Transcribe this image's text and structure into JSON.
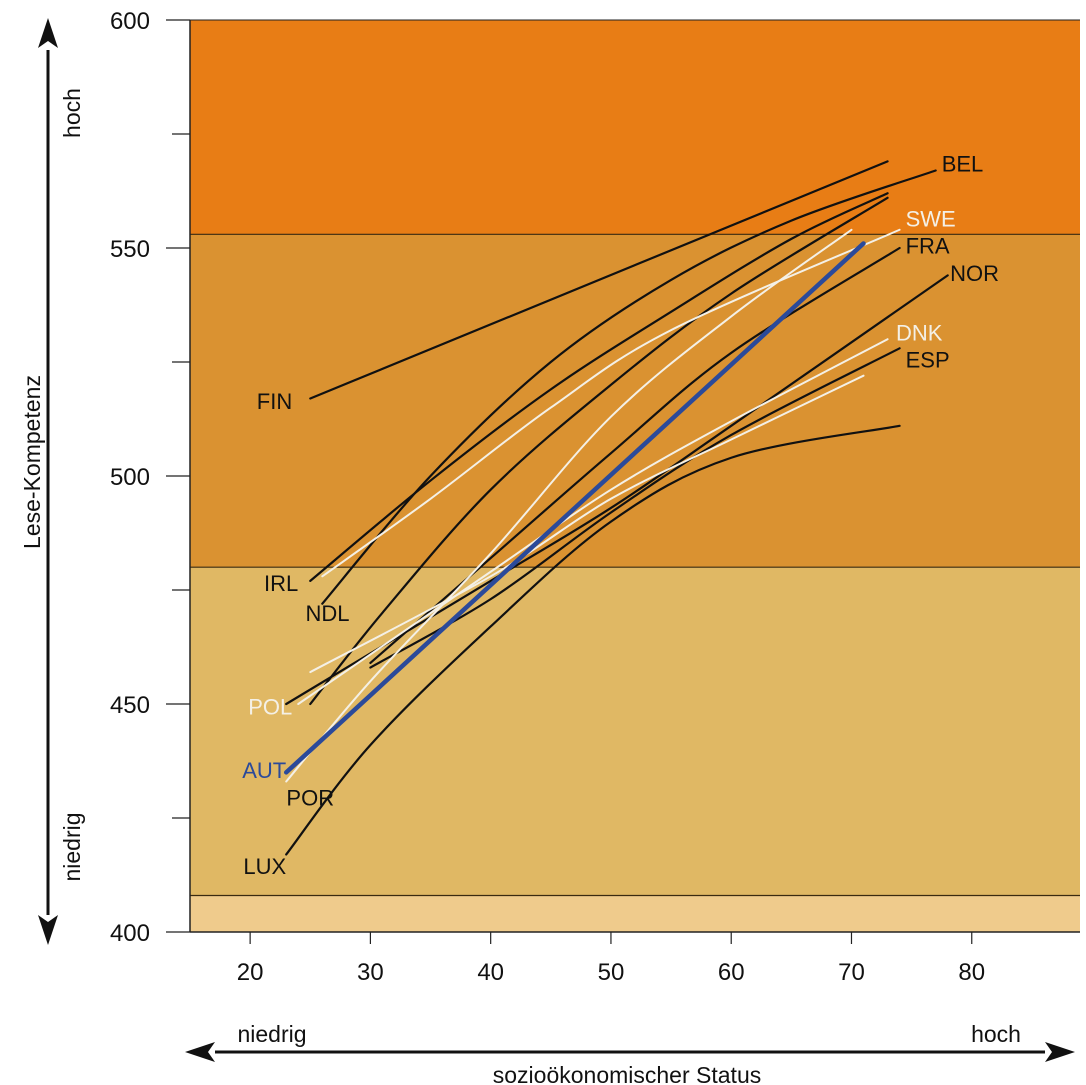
{
  "chart_data": {
    "type": "line",
    "title": "",
    "xlabel": "sozioökonomischer Status",
    "ylabel": "Lese-Kompetenz",
    "xlim": [
      15,
      89
    ],
    "ylim": [
      400,
      600
    ],
    "x_ticks": [
      20,
      30,
      40,
      50,
      60,
      70,
      80
    ],
    "y_ticks": [
      400,
      450,
      500,
      550,
      600
    ],
    "y_minor_ticks": [
      425,
      475,
      525,
      575
    ],
    "x_axis_words": {
      "low": "niedrig",
      "high": "hoch"
    },
    "y_axis_words": {
      "low": "niedrig",
      "high": "hoch"
    },
    "bands": [
      {
        "from": 408,
        "to": 480,
        "color": "#e0b864"
      },
      {
        "from": 480,
        "to": 553,
        "color": "#da9231"
      },
      {
        "from": 553,
        "to": 600,
        "color": "#e87d15"
      }
    ],
    "bottom_band": {
      "from": 400,
      "to": 408,
      "color": "#efcb8c"
    },
    "series": [
      {
        "name": "FIN",
        "color": "#111111",
        "width": 2.2,
        "points": [
          [
            25,
            517
          ],
          [
            73,
            569
          ]
        ]
      },
      {
        "name": "BEL",
        "color": "#111111",
        "width": 2.2,
        "points": [
          [
            26,
            472
          ],
          [
            35,
            500
          ],
          [
            45,
            525
          ],
          [
            55,
            543
          ],
          [
            65,
            556
          ],
          [
            77,
            567
          ]
        ]
      },
      {
        "name": "IRL",
        "color": "#111111",
        "width": 2.2,
        "points": [
          [
            25,
            477
          ],
          [
            35,
            499
          ],
          [
            45,
            519
          ],
          [
            55,
            536
          ],
          [
            65,
            552
          ],
          [
            73,
            562
          ]
        ]
      },
      {
        "name": "NDL",
        "color": "#111111",
        "width": 2.2,
        "points": [
          [
            25,
            450
          ],
          [
            31,
            470
          ],
          [
            40,
            497
          ],
          [
            50,
            520
          ],
          [
            60,
            540
          ],
          [
            73,
            561
          ]
        ]
      },
      {
        "name": "SWE",
        "color": "#f4f0e6",
        "width": 2,
        "points": [
          [
            26,
            478
          ],
          [
            35,
            495
          ],
          [
            45,
            515
          ],
          [
            55,
            532
          ],
          [
            74,
            554
          ]
        ]
      },
      {
        "name": "FRA",
        "color": "#111111",
        "width": 2.2,
        "points": [
          [
            30,
            459
          ],
          [
            40,
            482
          ],
          [
            50,
            505
          ],
          [
            60,
            527
          ],
          [
            74,
            550
          ]
        ]
      },
      {
        "name": "NOR",
        "color": "#111111",
        "width": 2.2,
        "points": [
          [
            23,
            450
          ],
          [
            40,
            477
          ],
          [
            50,
            493
          ],
          [
            60,
            511
          ],
          [
            78,
            544
          ]
        ]
      },
      {
        "name": "DNK",
        "color": "#f4f0e6",
        "width": 2,
        "points": [
          [
            24,
            450
          ],
          [
            40,
            479
          ],
          [
            50,
            497
          ],
          [
            60,
            512
          ],
          [
            73,
            530
          ]
        ]
      },
      {
        "name": "ESP",
        "color": "#111111",
        "width": 2.2,
        "points": [
          [
            30,
            458
          ],
          [
            40,
            473
          ],
          [
            50,
            492
          ],
          [
            60,
            509
          ],
          [
            74,
            528
          ]
        ]
      },
      {
        "name": "POL",
        "color": "#f4f0e6",
        "width": 2,
        "points": [
          [
            25,
            457
          ],
          [
            40,
            478
          ],
          [
            50,
            495
          ],
          [
            60,
            508
          ],
          [
            71,
            522
          ]
        ]
      },
      {
        "name": "AUT",
        "color": "#2b4a9a",
        "width": 4.5,
        "points": [
          [
            23,
            435
          ],
          [
            71,
            551
          ]
        ]
      },
      {
        "name": "POR",
        "color": "#f4f0e6",
        "width": 2,
        "points": [
          [
            23,
            433
          ],
          [
            30,
            455
          ],
          [
            40,
            483
          ],
          [
            50,
            513
          ],
          [
            60,
            535
          ],
          [
            70,
            554
          ]
        ]
      },
      {
        "name": "LUX",
        "color": "#111111",
        "width": 2.2,
        "points": [
          [
            23,
            417
          ],
          [
            30,
            441
          ],
          [
            40,
            467
          ],
          [
            50,
            490
          ],
          [
            60,
            504
          ],
          [
            74,
            511
          ]
        ]
      }
    ],
    "labels": [
      {
        "text": "FIN",
        "x": 23.5,
        "y": 516.5,
        "color": "#111111",
        "anchor": "end"
      },
      {
        "text": "BEL",
        "x": 77.5,
        "y": 568.5,
        "color": "#111111",
        "anchor": "start"
      },
      {
        "text": "SWE",
        "x": 74.5,
        "y": 556.5,
        "color": "#f4f0e6",
        "anchor": "start"
      },
      {
        "text": "FRA",
        "x": 74.5,
        "y": 550.5,
        "color": "#111111",
        "anchor": "start"
      },
      {
        "text": "NOR",
        "x": 78.2,
        "y": 544.5,
        "color": "#111111",
        "anchor": "start"
      },
      {
        "text": "DNK",
        "x": 73.7,
        "y": 531.5,
        "color": "#f4f0e6",
        "anchor": "start"
      },
      {
        "text": "ESP",
        "x": 74.5,
        "y": 525.5,
        "color": "#111111",
        "anchor": "start"
      },
      {
        "text": "IRL",
        "x": 24.0,
        "y": 476.5,
        "color": "#111111",
        "anchor": "end"
      },
      {
        "text": "NDL",
        "x": 24.6,
        "y": 470.0,
        "color": "#111111",
        "anchor": "start"
      },
      {
        "text": "POL",
        "x": 23.5,
        "y": 449.5,
        "color": "#f4f0e6",
        "anchor": "end"
      },
      {
        "text": "AUT",
        "x": 23.0,
        "y": 435.5,
        "color": "#2b4a9a",
        "anchor": "end"
      },
      {
        "text": "POR",
        "x": 25.0,
        "y": 429.5,
        "color": "#111111",
        "anchor": "middle"
      },
      {
        "text": "LUX",
        "x": 23.0,
        "y": 414.5,
        "color": "#111111",
        "anchor": "end"
      }
    ]
  }
}
